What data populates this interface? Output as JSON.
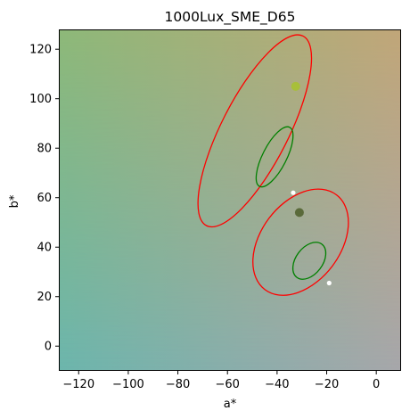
{
  "chart_data": {
    "type": "scatter",
    "title": "1000Lux_SME_D65",
    "xlabel": "a*",
    "ylabel": "b*",
    "xlim": [
      -128,
      10
    ],
    "ylim": [
      -10,
      128
    ],
    "xticks": [
      -120,
      -100,
      -80,
      -60,
      -40,
      -20,
      0
    ],
    "yticks": [
      0,
      20,
      40,
      60,
      80,
      100,
      120
    ],
    "grid": false,
    "legend": "none",
    "background": {
      "type": "color-gradient",
      "corner_colors": {
        "top-left": "#8db878",
        "top-right": "#c1a678",
        "bottom-left": "#6cb6ad",
        "bottom-right": "#a7a7ab"
      }
    },
    "points": [
      {
        "x": -32.5,
        "y": 105,
        "color": "#a8bf3a",
        "size": "large"
      },
      {
        "x": -31,
        "y": 54,
        "color": "#5a6a3a",
        "size": "large"
      },
      {
        "x": -33.5,
        "y": 62,
        "color": "#ffffff",
        "size": "small"
      },
      {
        "x": -19,
        "y": 25.5,
        "color": "#ffffff",
        "size": "small"
      }
    ],
    "ellipses": [
      {
        "cx": -49,
        "cy": 87,
        "rx": 13.5,
        "ry": 43,
        "angle": 27,
        "color": "#ff0000"
      },
      {
        "cx": -41,
        "cy": 76.5,
        "rx": 4.8,
        "ry": 13.4,
        "angle": 27,
        "color": "#008000"
      },
      {
        "cx": -30.5,
        "cy": 42,
        "rx": 16,
        "ry": 24,
        "angle": 37,
        "color": "#ff0000"
      },
      {
        "cx": -27,
        "cy": 34.5,
        "rx": 5.4,
        "ry": 8.4,
        "angle": 37,
        "color": "#008000"
      }
    ]
  }
}
